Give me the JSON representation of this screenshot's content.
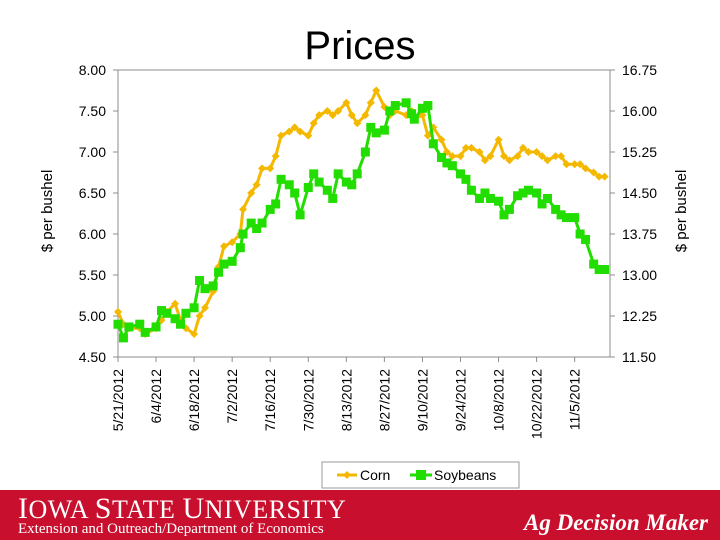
{
  "slide": {
    "title": "Prices"
  },
  "footer": {
    "logo_first_i": "I",
    "logo_owa": "OWA",
    "logo_first_s": "S",
    "logo_tate": "TATE",
    "logo_first_u": "U",
    "logo_niversity": "NIVERSITY",
    "department": "Extension and Outreach/Department of Economics",
    "brand": "Ag Decision Maker",
    "brand_color": "#c8102e"
  },
  "chart_data": {
    "type": "line",
    "title": "Prices",
    "x_tick_labels": [
      "5/21/2012",
      "6/4/2012",
      "6/18/2012",
      "7/2/2012",
      "7/16/2012",
      "7/30/2012",
      "8/13/2012",
      "8/27/2012",
      "9/10/2012",
      "9/24/2012",
      "10/8/2012",
      "10/22/2012",
      "11/5/2012"
    ],
    "x_range": [
      "5/21/2012",
      "11/18/2012"
    ],
    "y_left": {
      "label": "$ per bushel",
      "range": [
        4.5,
        8.0
      ],
      "ticks": [
        "4.50",
        "5.00",
        "5.50",
        "6.00",
        "6.50",
        "7.00",
        "7.50",
        "8.00"
      ]
    },
    "y_right": {
      "label": "$ per bushel",
      "range": [
        11.5,
        16.75
      ],
      "ticks": [
        "11.50",
        "12.25",
        "13.00",
        "13.75",
        "14.50",
        "15.25",
        "16.00",
        "16.75"
      ]
    },
    "legend_position": "bottom",
    "grid": false,
    "series": [
      {
        "name": "Corn",
        "axis": "left",
        "color": "#f5b800",
        "marker": "diamond",
        "points": [
          [
            "5/21/2012",
            5.05
          ],
          [
            "5/23/2012",
            4.9
          ],
          [
            "5/25/2012",
            4.85
          ],
          [
            "5/29/2012",
            4.85
          ],
          [
            "5/31/2012",
            4.78
          ],
          [
            "6/4/2012",
            4.85
          ],
          [
            "6/6/2012",
            4.95
          ],
          [
            "6/8/2012",
            5.05
          ],
          [
            "6/11/2012",
            5.15
          ],
          [
            "6/13/2012",
            4.95
          ],
          [
            "6/15/2012",
            4.85
          ],
          [
            "6/18/2012",
            4.78
          ],
          [
            "6/20/2012",
            5.0
          ],
          [
            "6/22/2012",
            5.1
          ],
          [
            "6/25/2012",
            5.3
          ],
          [
            "6/27/2012",
            5.6
          ],
          [
            "6/29/2012",
            5.85
          ],
          [
            "7/2/2012",
            5.9
          ],
          [
            "7/5/2012",
            6.0
          ],
          [
            "7/6/2012",
            6.3
          ],
          [
            "7/9/2012",
            6.5
          ],
          [
            "7/11/2012",
            6.6
          ],
          [
            "7/13/2012",
            6.8
          ],
          [
            "7/16/2012",
            6.8
          ],
          [
            "7/18/2012",
            6.95
          ],
          [
            "7/20/2012",
            7.2
          ],
          [
            "7/23/2012",
            7.25
          ],
          [
            "7/25/2012",
            7.3
          ],
          [
            "7/27/2012",
            7.25
          ],
          [
            "7/30/2012",
            7.2
          ],
          [
            "8/1/2012",
            7.35
          ],
          [
            "8/3/2012",
            7.45
          ],
          [
            "8/6/2012",
            7.5
          ],
          [
            "8/8/2012",
            7.45
          ],
          [
            "8/10/2012",
            7.5
          ],
          [
            "8/13/2012",
            7.6
          ],
          [
            "8/15/2012",
            7.45
          ],
          [
            "8/17/2012",
            7.35
          ],
          [
            "8/20/2012",
            7.45
          ],
          [
            "8/22/2012",
            7.6
          ],
          [
            "8/24/2012",
            7.75
          ],
          [
            "8/27/2012",
            7.55
          ],
          [
            "8/29/2012",
            7.45
          ],
          [
            "8/31/2012",
            7.5
          ],
          [
            "9/4/2012",
            7.45
          ],
          [
            "9/6/2012",
            7.5
          ],
          [
            "9/7/2012",
            7.4
          ],
          [
            "9/10/2012",
            7.45
          ],
          [
            "9/12/2012",
            7.2
          ],
          [
            "9/14/2012",
            7.3
          ],
          [
            "9/17/2012",
            7.15
          ],
          [
            "9/19/2012",
            7.0
          ],
          [
            "9/21/2012",
            6.95
          ],
          [
            "9/24/2012",
            6.95
          ],
          [
            "9/26/2012",
            7.05
          ],
          [
            "9/28/2012",
            7.05
          ],
          [
            "10/1/2012",
            7.0
          ],
          [
            "10/3/2012",
            6.9
          ],
          [
            "10/5/2012",
            6.95
          ],
          [
            "10/8/2012",
            7.15
          ],
          [
            "10/10/2012",
            6.95
          ],
          [
            "10/12/2012",
            6.9
          ],
          [
            "10/15/2012",
            6.95
          ],
          [
            "10/17/2012",
            7.05
          ],
          [
            "10/19/2012",
            7.0
          ],
          [
            "10/22/2012",
            7.0
          ],
          [
            "10/24/2012",
            6.95
          ],
          [
            "10/26/2012",
            6.9
          ],
          [
            "10/29/2012",
            6.95
          ],
          [
            "10/31/2012",
            6.95
          ],
          [
            "11/2/2012",
            6.85
          ],
          [
            "11/5/2012",
            6.85
          ],
          [
            "11/7/2012",
            6.85
          ],
          [
            "11/9/2012",
            6.8
          ],
          [
            "11/12/2012",
            6.75
          ],
          [
            "11/14/2012",
            6.7
          ],
          [
            "11/16/2012",
            6.7
          ]
        ]
      },
      {
        "name": "Soybeans",
        "axis": "right",
        "color": "#22dd00",
        "marker": "square",
        "points": [
          [
            "5/21/2012",
            12.1
          ],
          [
            "5/23/2012",
            11.85
          ],
          [
            "5/25/2012",
            12.05
          ],
          [
            "5/29/2012",
            12.1
          ],
          [
            "5/31/2012",
            11.95
          ],
          [
            "6/4/2012",
            12.05
          ],
          [
            "6/6/2012",
            12.35
          ],
          [
            "6/8/2012",
            12.3
          ],
          [
            "6/11/2012",
            12.2
          ],
          [
            "6/13/2012",
            12.1
          ],
          [
            "6/15/2012",
            12.3
          ],
          [
            "6/18/2012",
            12.4
          ],
          [
            "6/20/2012",
            12.9
          ],
          [
            "6/22/2012",
            12.75
          ],
          [
            "6/25/2012",
            12.8
          ],
          [
            "6/27/2012",
            13.05
          ],
          [
            "6/29/2012",
            13.2
          ],
          [
            "7/2/2012",
            13.25
          ],
          [
            "7/5/2012",
            13.5
          ],
          [
            "7/6/2012",
            13.75
          ],
          [
            "7/9/2012",
            13.95
          ],
          [
            "7/11/2012",
            13.85
          ],
          [
            "7/13/2012",
            13.95
          ],
          [
            "7/16/2012",
            14.2
          ],
          [
            "7/18/2012",
            14.3
          ],
          [
            "7/20/2012",
            14.75
          ],
          [
            "7/23/2012",
            14.65
          ],
          [
            "7/25/2012",
            14.5
          ],
          [
            "7/27/2012",
            14.1
          ],
          [
            "7/30/2012",
            14.6
          ],
          [
            "8/1/2012",
            14.85
          ],
          [
            "8/3/2012",
            14.7
          ],
          [
            "8/6/2012",
            14.55
          ],
          [
            "8/8/2012",
            14.4
          ],
          [
            "8/10/2012",
            14.85
          ],
          [
            "8/13/2012",
            14.7
          ],
          [
            "8/15/2012",
            14.65
          ],
          [
            "8/17/2012",
            14.85
          ],
          [
            "8/20/2012",
            15.25
          ],
          [
            "8/22/2012",
            15.7
          ],
          [
            "8/24/2012",
            15.6
          ],
          [
            "8/27/2012",
            15.65
          ],
          [
            "8/29/2012",
            16.0
          ],
          [
            "8/31/2012",
            16.1
          ],
          [
            "9/4/2012",
            16.15
          ],
          [
            "9/6/2012",
            15.95
          ],
          [
            "9/7/2012",
            15.85
          ],
          [
            "9/10/2012",
            16.05
          ],
          [
            "9/12/2012",
            16.1
          ],
          [
            "9/14/2012",
            15.4
          ],
          [
            "9/17/2012",
            15.15
          ],
          [
            "9/19/2012",
            15.05
          ],
          [
            "9/21/2012",
            15.0
          ],
          [
            "9/24/2012",
            14.85
          ],
          [
            "9/26/2012",
            14.75
          ],
          [
            "9/28/2012",
            14.55
          ],
          [
            "10/1/2012",
            14.4
          ],
          [
            "10/3/2012",
            14.5
          ],
          [
            "10/5/2012",
            14.4
          ],
          [
            "10/8/2012",
            14.35
          ],
          [
            "10/10/2012",
            14.1
          ],
          [
            "10/12/2012",
            14.2
          ],
          [
            "10/15/2012",
            14.45
          ],
          [
            "10/17/2012",
            14.5
          ],
          [
            "10/19/2012",
            14.55
          ],
          [
            "10/22/2012",
            14.5
          ],
          [
            "10/24/2012",
            14.3
          ],
          [
            "10/26/2012",
            14.4
          ],
          [
            "10/29/2012",
            14.2
          ],
          [
            "10/31/2012",
            14.1
          ],
          [
            "11/2/2012",
            14.05
          ],
          [
            "11/5/2012",
            14.05
          ],
          [
            "11/7/2012",
            13.75
          ],
          [
            "11/9/2012",
            13.65
          ],
          [
            "11/12/2012",
            13.2
          ],
          [
            "11/14/2012",
            13.1
          ],
          [
            "11/16/2012",
            13.1
          ]
        ]
      }
    ]
  }
}
